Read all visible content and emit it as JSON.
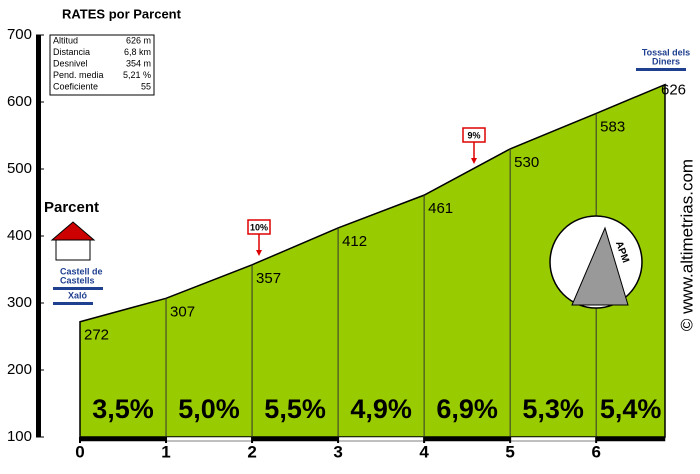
{
  "chart_data": {
    "type": "area",
    "title": "RATES por Parcent",
    "x": [
      0,
      1,
      2,
      3,
      4,
      5,
      6,
      6.8
    ],
    "values": [
      272,
      307,
      357,
      412,
      461,
      530,
      583,
      626
    ],
    "xlim": [
      0,
      6.8
    ],
    "ylim": [
      100,
      700
    ],
    "xticks": [
      0,
      1,
      2,
      3,
      4,
      5,
      6
    ],
    "yticks": [
      100,
      200,
      300,
      400,
      500,
      600,
      700
    ],
    "color": "#99cc00",
    "segment_labels": [
      "3,5%",
      "5,0%",
      "5,5%",
      "4,9%",
      "6,9%",
      "5,3%",
      "5,4%"
    ],
    "max_grades": [
      "10%",
      "9%"
    ],
    "info": [
      [
        "Altitud",
        "626 m"
      ],
      [
        "Distancia",
        "6,8 km"
      ],
      [
        "Desnivel",
        "354 m"
      ],
      [
        "Pend. media",
        "5,21 %"
      ],
      [
        "Coeficiente",
        "55"
      ]
    ],
    "places": {
      "start": "Parcent",
      "start_road_1": "Castell de",
      "start_road_2": "Castells",
      "start_road_3": "Xaló",
      "end_1": "Tossal dels",
      "end_2": "Diners"
    },
    "logo": "APM",
    "credit": "© www.altimetrias.com"
  }
}
